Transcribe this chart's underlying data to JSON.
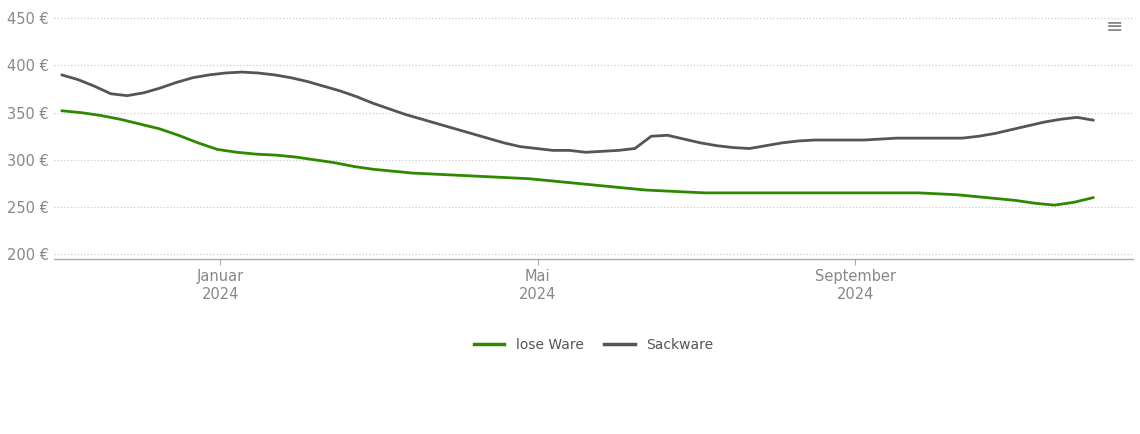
{
  "background_color": "#ffffff",
  "grid_color": "#cccccc",
  "lose_ware_color": "#2d8a00",
  "sackware_color": "#555555",
  "line_width": 2.0,
  "ylim": [
    195,
    462
  ],
  "yticks": [
    200,
    250,
    300,
    350,
    400,
    450
  ],
  "ytick_labels": [
    "200 €",
    "250 €",
    "300 €",
    "350 €",
    "400 €",
    "450 €"
  ],
  "x_tick_labels": [
    "Januar\n2024",
    "Mai\n2024",
    "September\n2024"
  ],
  "legend_labels": [
    "lose Ware",
    "Sackware"
  ],
  "tick_fontsize": 10.5,
  "legend_fontsize": 10,
  "lose_ware": [
    352,
    350,
    347,
    343,
    338,
    333,
    326,
    318,
    311,
    308,
    306,
    305,
    303,
    300,
    297,
    293,
    290,
    288,
    286,
    285,
    284,
    283,
    282,
    281,
    280,
    278,
    276,
    274,
    272,
    270,
    268,
    267,
    266,
    265,
    265,
    265,
    265,
    265,
    265,
    265,
    265,
    265,
    265,
    265,
    265,
    264,
    263,
    261,
    259,
    257,
    254,
    252,
    255,
    260
  ],
  "sackware": [
    390,
    385,
    378,
    370,
    368,
    371,
    376,
    382,
    387,
    390,
    392,
    393,
    392,
    390,
    387,
    383,
    378,
    373,
    367,
    360,
    354,
    348,
    343,
    338,
    333,
    328,
    323,
    318,
    314,
    312,
    310,
    310,
    308,
    309,
    310,
    312,
    325,
    326,
    322,
    318,
    315,
    313,
    312,
    315,
    318,
    320,
    321,
    321,
    321,
    321,
    322,
    323,
    323,
    323,
    323,
    323,
    325,
    328,
    332,
    336,
    340,
    343,
    345,
    342
  ]
}
